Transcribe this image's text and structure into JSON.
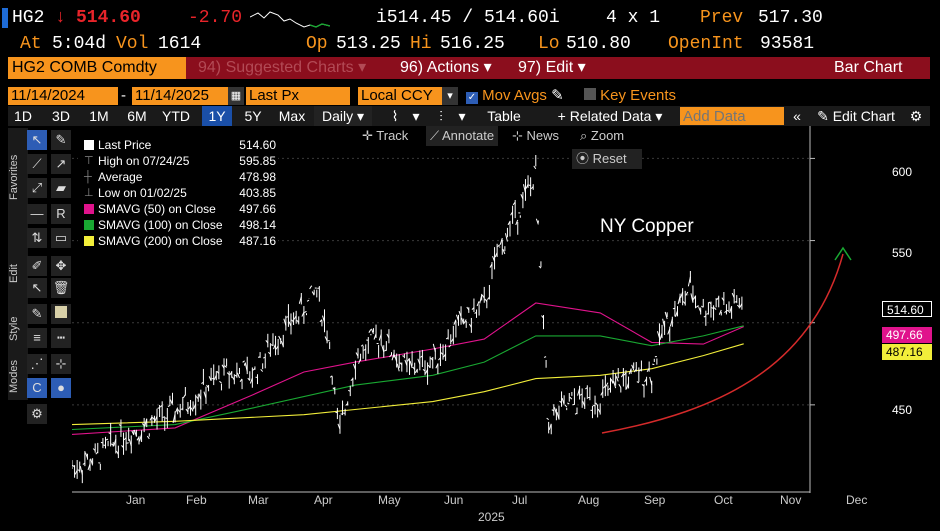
{
  "quote": {
    "ticker": "HG2",
    "arrow": "↓",
    "last": "514.60",
    "change": "-2.70",
    "bid_ask": "i514.45 / 514.60i",
    "size": "4 x 1",
    "prev_label": "Prev",
    "prev": "517.30",
    "at_label": "At",
    "at_time": "5:04d",
    "vol_label": "Vol",
    "vol": "1614",
    "op_label": "Op",
    "op": "513.25",
    "hi_label": "Hi",
    "hi": "516.25",
    "lo_label": "Lo",
    "lo": "510.80",
    "oi_label": "OpenInt",
    "oi": "93581"
  },
  "menu": {
    "security": "HG2 COMB Comdty",
    "suggested": "94) Suggested Charts",
    "actions": "96) Actions",
    "edit": "97) Edit",
    "title": "Bar Chart"
  },
  "controls": {
    "start_date": "11/14/2024",
    "end_date": "11/14/2025",
    "field": "Last Px",
    "currency": "Local CCY",
    "mov_avgs": "Mov Avgs",
    "key_events": "Key Events"
  },
  "ranges": [
    "1D",
    "3D",
    "1M",
    "6M",
    "YTD",
    "1Y",
    "5Y",
    "Max"
  ],
  "range_active": "1Y",
  "rangebar": {
    "period": "Daily",
    "table": "Table",
    "related": "+ Related Data",
    "add_data_placeholder": "Add Data",
    "edit_chart": "Edit Chart"
  },
  "side_tabs": [
    "Favorites",
    "Edit",
    "Style",
    "Modes"
  ],
  "chart_tools": {
    "track": "Track",
    "annotate": "Annotate",
    "news": "News",
    "zoom": "Zoom",
    "reset": "Reset"
  },
  "legend": [
    {
      "name": "Last Price",
      "value": "514.60",
      "color": "#ffffff"
    },
    {
      "name": "High on 07/24/25",
      "value": "595.85",
      "color": "#888888"
    },
    {
      "name": "Average",
      "value": "478.98",
      "color": "#888888"
    },
    {
      "name": "Low on 01/02/25",
      "value": "403.85",
      "color": "#888888"
    },
    {
      "name": "SMAVG (50)  on Close",
      "value": "497.66",
      "color": "#e0138c"
    },
    {
      "name": "SMAVG (100)  on Close",
      "value": "498.14",
      "color": "#19a832"
    },
    {
      "name": "SMAVG (200)  on Close",
      "value": "487.16",
      "color": "#f2ee3a"
    }
  ],
  "annotation": "NY Copper",
  "colors": {
    "accent": "#f7941d",
    "menubar": "#8b0e1d",
    "down": "#e8242a",
    "active_range": "#1a4fa8",
    "sma50": "#e0138c",
    "sma100": "#19a832",
    "sma200": "#f2ee3a",
    "trend_arrow": "#d42a2a"
  },
  "chart_data": {
    "type": "bar",
    "title": "NY Copper",
    "x_months": [
      "Jan",
      "Feb",
      "Mar",
      "Apr",
      "May",
      "Jun",
      "Jul",
      "Aug",
      "Sep",
      "Oct",
      "Nov",
      "Dec"
    ],
    "x_year": "2025",
    "y_ticks": [
      450,
      500,
      550,
      600
    ],
    "ylim": [
      400,
      610
    ],
    "price_tags": [
      {
        "label": "514.60",
        "value": 514.6,
        "series": "Last Price"
      },
      {
        "label": "497.66",
        "value": 497.66,
        "series": "SMAVG (50)"
      },
      {
        "label": "487.16",
        "value": 487.16,
        "series": "SMAVG (200)"
      }
    ],
    "series": [
      {
        "name": "Last Price",
        "dates": [
          "2024-11-14",
          "2024-11-28",
          "2024-12-12",
          "2024-12-26",
          "2025-01-09",
          "2025-01-23",
          "2025-02-06",
          "2025-02-20",
          "2025-03-06",
          "2025-03-20",
          "2025-03-27",
          "2025-04-03",
          "2025-04-08",
          "2025-04-17",
          "2025-05-01",
          "2025-05-15",
          "2025-05-29",
          "2025-06-12",
          "2025-06-26",
          "2025-07-03",
          "2025-07-10",
          "2025-07-24",
          "2025-07-31",
          "2025-08-14",
          "2025-08-28",
          "2025-09-11",
          "2025-09-25",
          "2025-10-02",
          "2025-10-16",
          "2025-10-23",
          "2025-10-30",
          "2025-11-06",
          "2025-11-14"
        ],
        "values": [
          412,
          418,
          432,
          438,
          446,
          458,
          470,
          468,
          492,
          508,
          520,
          488,
          430,
          478,
          492,
          472,
          476,
          498,
          510,
          540,
          558,
          590,
          440,
          452,
          454,
          466,
          470,
          498,
          520,
          508,
          512,
          508,
          514.6
        ]
      },
      {
        "name": "SMAVG (50)",
        "dates": [
          "2024-11-14",
          "2025-01-09",
          "2025-02-20",
          "2025-03-20",
          "2025-04-17",
          "2025-05-29",
          "2025-06-26",
          "2025-07-24",
          "2025-08-28",
          "2025-09-25",
          "2025-10-23",
          "2025-11-14"
        ],
        "values": [
          432,
          436,
          456,
          470,
          476,
          484,
          490,
          512,
          506,
          488,
          487,
          497.66
        ]
      },
      {
        "name": "SMAVG (100)",
        "dates": [
          "2024-11-14",
          "2025-01-09",
          "2025-02-20",
          "2025-04-17",
          "2025-05-29",
          "2025-06-26",
          "2025-07-24",
          "2025-08-28",
          "2025-09-25",
          "2025-10-23",
          "2025-11-14"
        ],
        "values": [
          435,
          438,
          448,
          462,
          468,
          476,
          492,
          492,
          486,
          492,
          498.14
        ]
      },
      {
        "name": "SMAVG (200)",
        "dates": [
          "2024-11-14",
          "2025-01-09",
          "2025-03-20",
          "2025-05-29",
          "2025-06-26",
          "2025-07-24",
          "2025-08-28",
          "2025-09-25",
          "2025-10-23",
          "2025-11-14"
        ],
        "values": [
          438,
          440,
          444,
          452,
          458,
          466,
          468,
          472,
          480,
          487.16
        ]
      }
    ]
  }
}
